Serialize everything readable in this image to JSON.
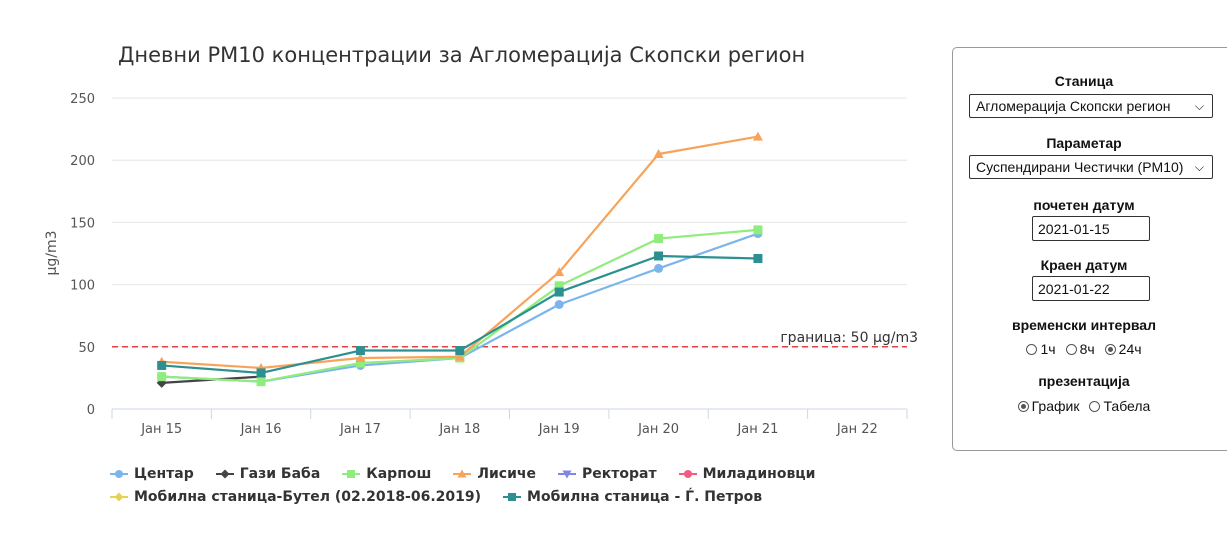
{
  "chart_data": {
    "type": "line",
    "title": "Дневни PM10 концентрации за Агломерација Скопски регион",
    "ylabel": "μg/m3",
    "xlabel": "",
    "categories": [
      "Јан 15",
      "Јан 16",
      "Јан 17",
      "Јан 18",
      "Јан 19",
      "Јан 20",
      "Јан 21",
      "Јан 22"
    ],
    "ylim": [
      0,
      250
    ],
    "yticks": [
      0,
      50,
      100,
      150,
      200,
      250
    ],
    "grid": true,
    "legend_position": "bottom",
    "limit_line": {
      "value": 50,
      "label": "граница: 50 μg/m3",
      "color": "#e04040"
    },
    "series": [
      {
        "name": "Центар",
        "color": "#7cb5ec",
        "marker": "circle",
        "values": [
          26,
          22,
          35,
          41,
          84,
          113,
          141,
          null
        ]
      },
      {
        "name": "Гази Баба",
        "color": "#434348",
        "marker": "diamond",
        "values": [
          21,
          26,
          null,
          null,
          null,
          null,
          null,
          null
        ]
      },
      {
        "name": "Карпош",
        "color": "#90ed7d",
        "marker": "square",
        "values": [
          26,
          22,
          37,
          41,
          99,
          137,
          144,
          null
        ]
      },
      {
        "name": "Лисиче",
        "color": "#f7a35c",
        "marker": "triangle",
        "values": [
          38,
          33,
          41,
          42,
          110,
          205,
          219,
          null
        ]
      },
      {
        "name": "Ректорат",
        "color": "#8085e9",
        "marker": "triangle-down",
        "values": [
          null,
          null,
          null,
          null,
          null,
          null,
          null,
          null
        ]
      },
      {
        "name": "Миладиновци",
        "color": "#f15c80",
        "marker": "circle",
        "values": [
          null,
          null,
          null,
          null,
          null,
          null,
          null,
          null
        ]
      },
      {
        "name": "Мобилна станица-Бутел (02.2018-06.2019)",
        "color": "#e4d354",
        "marker": "diamond",
        "values": [
          null,
          null,
          null,
          null,
          null,
          null,
          null,
          null
        ]
      },
      {
        "name": "Мобилна станица - Ѓ. Петров",
        "color": "#2b908f",
        "marker": "square",
        "values": [
          35,
          29,
          47,
          47,
          94,
          123,
          121,
          null
        ]
      }
    ]
  },
  "panel": {
    "station_label": "Станица",
    "station_value": "Агломерација Скопски регион",
    "parameter_label": "Параметар",
    "parameter_value": "Суспендирани Честички (PM10)",
    "start_label": "почетен датум",
    "start_value": "2021-01-15",
    "end_label": "Краен датум",
    "end_value": "2021-01-22",
    "interval_label": "временски интервал",
    "interval_options": [
      "1ч",
      "8ч",
      "24ч"
    ],
    "interval_selected": "24ч",
    "presentation_label": "презентација",
    "presentation_options": [
      "График",
      "Табела"
    ],
    "presentation_selected": "График"
  }
}
